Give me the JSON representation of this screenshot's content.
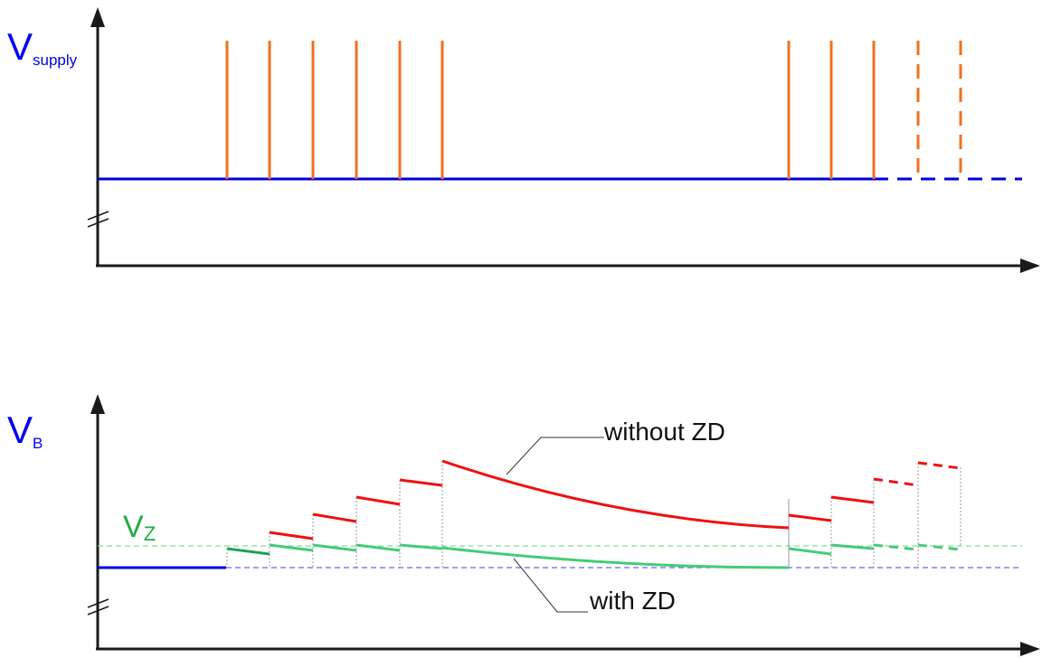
{
  "labels": {
    "supply_main": "V",
    "supply_sub": "supply",
    "battery_main": "V",
    "battery_sub": "B",
    "zener_main": "V",
    "zener_sub": "Z",
    "without_zd": "without ZD",
    "with_zd": "with ZD"
  },
  "colors": {
    "axis": "#1a1a1a",
    "supply_line": "#0000dd",
    "pulse": "#f07020",
    "without_zd": "#ee1111",
    "with_zd": "#44cc77",
    "with_zd_dark": "#22a055",
    "vz_ref": "#88dd99",
    "vb_ref": "#6666ee",
    "grid_guide": "#999999",
    "label_blue": "#0000ee",
    "label_green": "#22aa44"
  },
  "icons": [
    "y-axis-arrow-icon",
    "x-axis-arrow-icon",
    "axis-break-icon"
  ]
}
